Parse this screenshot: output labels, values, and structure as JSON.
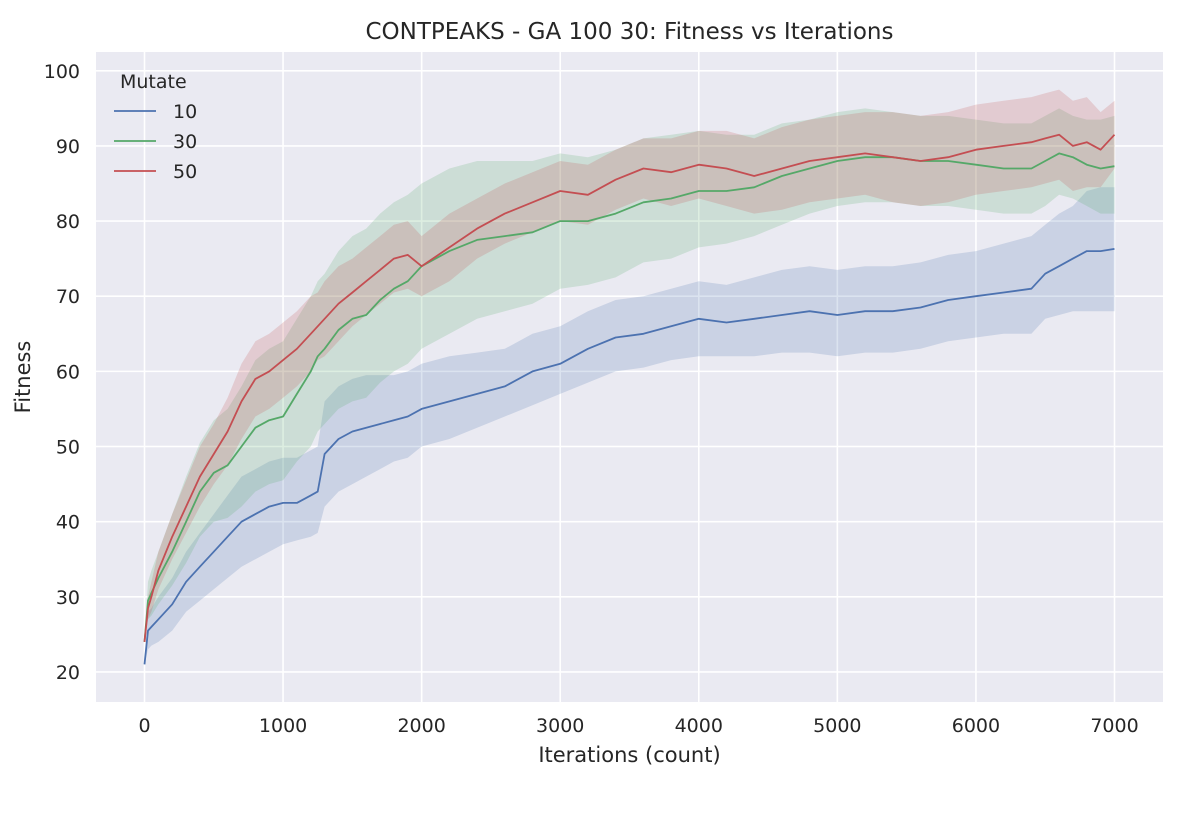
{
  "chart_data": {
    "type": "line",
    "title": "CONTPEAKS - GA 100 30: Fitness vs Iterations",
    "xlabel": "Iterations (count)",
    "ylabel": "Fitness",
    "xlim": [
      -350,
      7350
    ],
    "ylim": [
      16,
      102.5
    ],
    "xticks": [
      0,
      1000,
      2000,
      3000,
      4000,
      5000,
      6000,
      7000
    ],
    "yticks": [
      20,
      30,
      40,
      50,
      60,
      70,
      80,
      90,
      100
    ],
    "grid": true,
    "legend": {
      "title": "Mutate",
      "placement": "top-left"
    },
    "x": [
      0,
      25,
      50,
      100,
      200,
      300,
      400,
      500,
      600,
      700,
      800,
      900,
      1000,
      1100,
      1200,
      1250,
      1300,
      1400,
      1500,
      1600,
      1700,
      1800,
      1900,
      2000,
      2200,
      2400,
      2600,
      2800,
      3000,
      3200,
      3400,
      3600,
      3800,
      4000,
      4200,
      4400,
      4600,
      4800,
      5000,
      5200,
      5400,
      5600,
      5800,
      6000,
      6200,
      6400,
      6500,
      6600,
      6700,
      6800,
      6900,
      7000
    ],
    "series": [
      {
        "name": "10",
        "color": "#4c72b0",
        "values": [
          21,
          25.5,
          26,
          27,
          29,
          32,
          34,
          36,
          38,
          40,
          41,
          42,
          42.5,
          42.5,
          43.5,
          44,
          49,
          51,
          52,
          52.5,
          53,
          53.5,
          54,
          55,
          56,
          57,
          58,
          60,
          61,
          63,
          64.5,
          65,
          66,
          67,
          66.5,
          67,
          67.5,
          68,
          67.5,
          68,
          68,
          68.5,
          69.5,
          70,
          70.5,
          71,
          73,
          74,
          75,
          76,
          76,
          76.3
        ],
        "lower": [
          21,
          23,
          23.5,
          24,
          25.5,
          28,
          29.5,
          31,
          32.5,
          34,
          35,
          36,
          37,
          37.5,
          38,
          38.5,
          42,
          44,
          45,
          46,
          47,
          48,
          48.5,
          50,
          51,
          52.5,
          54,
          55.5,
          57,
          58.5,
          60,
          60.5,
          61.5,
          62,
          62,
          62,
          62.5,
          62.5,
          62,
          62.5,
          62.5,
          63,
          64,
          64.5,
          65,
          65,
          67,
          67.5,
          68,
          68,
          68,
          68
        ],
        "upper": [
          21,
          28,
          28.5,
          30,
          32.5,
          36,
          38.5,
          41,
          43.5,
          46,
          47,
          48,
          48.5,
          48.5,
          49.5,
          50,
          56,
          58,
          59,
          59.5,
          59.5,
          59.5,
          60,
          61,
          62,
          62.5,
          63,
          65,
          66,
          68,
          69.5,
          70,
          71,
          72,
          71.5,
          72.5,
          73.5,
          74,
          73.5,
          74,
          74,
          74.5,
          75.5,
          76,
          77,
          78,
          79.5,
          81,
          82,
          84,
          84.5,
          84.5
        ]
      },
      {
        "name": "30",
        "color": "#55a868",
        "values": [
          24,
          29.5,
          30.5,
          32.5,
          36,
          40,
          44,
          46.5,
          47.5,
          50,
          52.5,
          53.5,
          54,
          57,
          60,
          62,
          63,
          65.5,
          67,
          67.5,
          69.5,
          71,
          72,
          74,
          76,
          77.5,
          78,
          78.5,
          80,
          80,
          81,
          82.5,
          83,
          84,
          84,
          84.5,
          86,
          87,
          88,
          88.5,
          88.5,
          88,
          88,
          87.5,
          87,
          87,
          88,
          89,
          88.5,
          87.5,
          87,
          87.3
        ],
        "lower": [
          24,
          27,
          27.5,
          29,
          31.5,
          34.5,
          38,
          40,
          40.5,
          42,
          44,
          45,
          45.5,
          48,
          50,
          52,
          53,
          55,
          56,
          56.5,
          58.5,
          60,
          61,
          63,
          65,
          67,
          68,
          69,
          71,
          71.5,
          72.5,
          74.5,
          75,
          76.5,
          77,
          78,
          79.5,
          81,
          82,
          82.5,
          82.5,
          82,
          82,
          81.5,
          81,
          81,
          82,
          83.5,
          83,
          82,
          81,
          81
        ],
        "upper": [
          24,
          32,
          33.5,
          36,
          41,
          46,
          50.5,
          53.5,
          55,
          58,
          61.5,
          63,
          64,
          67,
          70,
          72,
          73,
          76,
          78,
          79,
          81,
          82.5,
          83.5,
          85,
          87,
          88,
          88,
          88,
          89,
          88.5,
          89.5,
          91,
          91.5,
          92,
          91.5,
          91.5,
          93,
          93.5,
          94.5,
          95,
          94.5,
          94,
          94,
          93.5,
          93,
          93,
          94,
          95,
          94,
          93.5,
          93.5,
          94
        ]
      },
      {
        "name": "50",
        "color": "#c44e52",
        "values": [
          24,
          28.5,
          30,
          33.5,
          38,
          42,
          46,
          49,
          52,
          56,
          59,
          60,
          61.5,
          63,
          65,
          66,
          67,
          69,
          70.5,
          72,
          73.5,
          75,
          75.5,
          74,
          76.5,
          79,
          81,
          82.5,
          84,
          83.5,
          85.5,
          87,
          86.5,
          87.5,
          87,
          86,
          87,
          88,
          88.5,
          89,
          88.5,
          88,
          88.5,
          89.5,
          90,
          90.5,
          91,
          91.5,
          90,
          90.5,
          89.5,
          91.5
        ],
        "lower": [
          24,
          27,
          28,
          31,
          35,
          38.5,
          42,
          45,
          47.5,
          51,
          54,
          55,
          56.5,
          58,
          60,
          61.5,
          62,
          64,
          66,
          67.5,
          69,
          70.5,
          71,
          70,
          72,
          75,
          77,
          78.5,
          80,
          79.5,
          81.5,
          83,
          82,
          83,
          82,
          81,
          81.5,
          82.5,
          83,
          83.5,
          82.5,
          82,
          82.5,
          83.5,
          84,
          84.5,
          85,
          85.5,
          84,
          84.5,
          84.5,
          87
        ],
        "upper": [
          24,
          30,
          32,
          36,
          41,
          45.5,
          50,
          53,
          56.5,
          61,
          64,
          65,
          66.5,
          68,
          70,
          70.5,
          72,
          74,
          75,
          76.5,
          78,
          79.5,
          80,
          78,
          81,
          83,
          85,
          86.5,
          88,
          87.5,
          89.5,
          91,
          91,
          92,
          92,
          91,
          92.5,
          93.5,
          94,
          94.5,
          94.5,
          94,
          94.5,
          95.5,
          96,
          96.5,
          97,
          97.5,
          96,
          96.5,
          94.5,
          96
        ]
      }
    ]
  }
}
